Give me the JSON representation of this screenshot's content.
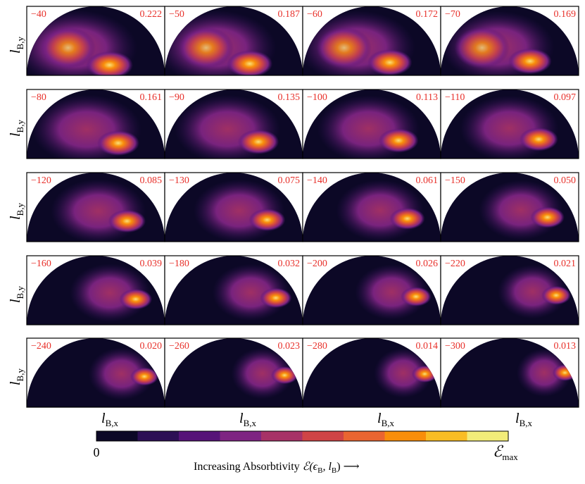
{
  "panels": [
    {
      "energy": "−40",
      "max": "0.222"
    },
    {
      "energy": "−50",
      "max": "0.187"
    },
    {
      "energy": "−60",
      "max": "0.172"
    },
    {
      "energy": "−70",
      "max": "0.169"
    },
    {
      "energy": "−80",
      "max": "0.161"
    },
    {
      "energy": "−90",
      "max": "0.135"
    },
    {
      "energy": "−100",
      "max": "0.113"
    },
    {
      "energy": "−110",
      "max": "0.097"
    },
    {
      "energy": "−120",
      "max": "0.085"
    },
    {
      "energy": "−130",
      "max": "0.075"
    },
    {
      "energy": "−140",
      "max": "0.061"
    },
    {
      "energy": "−150",
      "max": "0.050"
    },
    {
      "energy": "−160",
      "max": "0.039"
    },
    {
      "energy": "−180",
      "max": "0.032"
    },
    {
      "energy": "−200",
      "max": "0.026"
    },
    {
      "energy": "−220",
      "max": "0.021"
    },
    {
      "energy": "−240",
      "max": "0.020"
    },
    {
      "energy": "−260",
      "max": "0.023"
    },
    {
      "energy": "−280",
      "max": "0.014"
    },
    {
      "energy": "−300",
      "max": "0.013"
    }
  ],
  "y_label": {
    "base": "l",
    "sub": "B,y"
  },
  "x_label": {
    "base": "l",
    "sub": "B,x"
  },
  "colorbar": {
    "colors": [
      "#0c0826",
      "#2d0f55",
      "#561378",
      "#7e2482",
      "#a73267",
      "#cf4446",
      "#ea6531",
      "#f98e0a",
      "#f9bd24",
      "#f2ec79"
    ],
    "min_label": "0",
    "max_label": {
      "base": "ℰ",
      "sub": "max"
    },
    "caption": {
      "text": "Increasing Absorbtivity ",
      "math": "ℰ(ϵ",
      "sub1": "B",
      "mid": ", l",
      "sub2": "B",
      "end": ") ⟶"
    }
  }
}
